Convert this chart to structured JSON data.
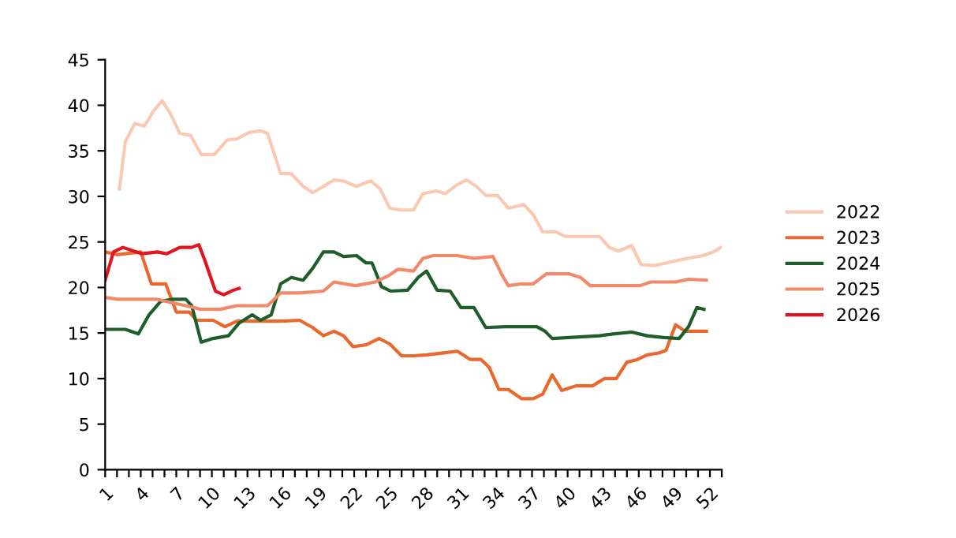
{
  "chart_data": {
    "type": "line",
    "xlim": [
      1,
      53
    ],
    "ylim": [
      0,
      45
    ],
    "yticks": [
      0,
      5,
      10,
      15,
      20,
      25,
      30,
      35,
      40,
      45
    ],
    "xticks": [
      1,
      {
        "value": 2,
        "label": null
      },
      {
        "value": 3,
        "label": null
      },
      4,
      {
        "value": 5,
        "label": null
      },
      {
        "value": 6,
        "label": null
      },
      7,
      {
        "value": 8,
        "label": null
      },
      {
        "value": 9,
        "label": null
      },
      10,
      {
        "value": 11,
        "label": null
      },
      {
        "value": 12,
        "label": null
      },
      13,
      {
        "value": 14,
        "label": null
      },
      {
        "value": 15,
        "label": null
      },
      16,
      {
        "value": 17,
        "label": null
      },
      {
        "value": 18,
        "label": null
      },
      19,
      {
        "value": 20,
        "label": null
      },
      {
        "value": 21,
        "label": null
      },
      22,
      {
        "value": 23,
        "label": null
      },
      {
        "value": 24,
        "label": null
      },
      25,
      {
        "value": 26,
        "label": null
      },
      {
        "value": 27,
        "label": null
      },
      28,
      {
        "value": 29,
        "label": null
      },
      {
        "value": 30,
        "label": null
      },
      31,
      {
        "value": 32,
        "label": null
      },
      {
        "value": 33,
        "label": null
      },
      34,
      {
        "value": 35,
        "label": null
      },
      {
        "value": 36,
        "label": null
      },
      37,
      {
        "value": 38,
        "label": null
      },
      {
        "value": 39,
        "label": null
      },
      40,
      {
        "value": 41,
        "label": null
      },
      {
        "value": 42,
        "label": null
      },
      43,
      {
        "value": 44,
        "label": null
      },
      {
        "value": 45,
        "label": null
      },
      46,
      {
        "value": 47,
        "label": null
      },
      {
        "value": 48,
        "label": null
      },
      49,
      {
        "value": 50,
        "label": null
      },
      {
        "value": 51,
        "label": null
      },
      52,
      {
        "value": 53,
        "label": null
      }
    ],
    "grid": false,
    "legend": "right",
    "marker": "none",
    "line_style": "solid",
    "series": [
      {
        "name": "2022",
        "color": "#f9c9b1",
        "x": [
          2.2,
          2.7,
          3.5,
          4.3,
          5.1,
          5.8,
          6.5,
          7.3,
          8.2,
          9.1,
          10.2,
          11.3,
          12.1,
          13.1,
          14.1,
          14.7,
          15.8,
          16.7,
          17.7,
          18.5,
          19.4,
          20.3,
          21.1,
          22.2,
          23.4,
          24.2,
          25,
          26,
          27,
          27.8,
          28.9,
          29.7,
          30.7,
          31.5,
          32.3,
          33.1,
          34.1,
          35,
          36.3,
          37.1,
          37.9,
          39,
          39.8,
          41.7,
          42.7,
          43.5,
          44.3,
          45.4,
          46.2,
          47.3,
          48.7,
          50.1,
          51.4,
          52.3,
          52.9
        ],
        "values": [
          30.8,
          36,
          38,
          37.7,
          39.4,
          40.5,
          39.1,
          36.9,
          36.7,
          34.6,
          34.6,
          36.2,
          36.3,
          37,
          37.2,
          36.9,
          32.5,
          32.5,
          31.1,
          30.4,
          31.1,
          31.8,
          31.7,
          31.1,
          31.7,
          30.8,
          28.7,
          28.5,
          28.5,
          30.3,
          30.6,
          30.3,
          31.3,
          31.8,
          31.1,
          30.1,
          30.1,
          28.7,
          29.1,
          28,
          26.1,
          26.1,
          25.6,
          25.6,
          25.6,
          24.4,
          24,
          24.6,
          22.5,
          22.4,
          22.8,
          23.2,
          23.5,
          23.9,
          24.4
        ]
      },
      {
        "name": "2023",
        "color": "#e8682e",
        "x": [
          1,
          2,
          4,
          4.9,
          6.1,
          7,
          8.1,
          8.7,
          10.1,
          11.1,
          12.1,
          13.1,
          15.8,
          17.4,
          18.5,
          19.4,
          20.3,
          21.1,
          21.9,
          23,
          24.1,
          25,
          26,
          27,
          28.1,
          29.4,
          30.7,
          31.8,
          32.7,
          33.4,
          34.2,
          35,
          36.1,
          37.1,
          37.9,
          38.7,
          39.5,
          40.7,
          42.1,
          43.1,
          44.1,
          45,
          45.9,
          46.7,
          47.7,
          48.3,
          49.1,
          49.9,
          50.7,
          51.7
        ],
        "values": [
          23.9,
          23.6,
          23.9,
          20.4,
          20.4,
          17.3,
          17.3,
          16.4,
          16.4,
          15.7,
          16.3,
          16.3,
          16.3,
          16.4,
          15.6,
          14.7,
          15.2,
          14.7,
          13.5,
          13.7,
          14.4,
          13.8,
          12.5,
          12.5,
          12.6,
          12.8,
          13,
          12.1,
          12.1,
          11.2,
          8.8,
          8.8,
          7.8,
          7.8,
          8.3,
          10.4,
          8.7,
          9.2,
          9.2,
          10,
          10,
          11.8,
          12.1,
          12.6,
          12.8,
          13.1,
          15.9,
          15.2,
          15.2,
          15.2
        ]
      },
      {
        "name": "2024",
        "color": "#1f5e2a",
        "x": [
          1,
          2.7,
          3.8,
          4.7,
          5.7,
          6.7,
          7.8,
          8.3,
          9.1,
          10.1,
          11.4,
          12.3,
          13.4,
          14.1,
          15,
          15.8,
          16.7,
          17.7,
          18.5,
          19.4,
          20.3,
          21.1,
          22.2,
          23,
          23.5,
          24.3,
          25.1,
          26.5,
          27.4,
          28.1,
          29,
          30.1,
          31,
          32.1,
          33.1,
          34.7,
          37.4,
          38.1,
          38.7,
          40.1,
          42.7,
          43.8,
          45.4,
          46.7,
          48.1,
          49.4,
          50.2,
          50.9,
          51.5
        ],
        "values": [
          15.4,
          15.4,
          14.9,
          17,
          18.5,
          18.7,
          18.7,
          18,
          14,
          14.4,
          14.7,
          16.1,
          17,
          16.4,
          17,
          20.4,
          21.1,
          20.8,
          22.1,
          23.9,
          23.9,
          23.4,
          23.5,
          22.7,
          22.7,
          20.1,
          19.6,
          19.7,
          21.1,
          21.8,
          19.7,
          19.6,
          17.8,
          17.8,
          15.6,
          15.7,
          15.7,
          15.2,
          14.4,
          14.5,
          14.7,
          14.9,
          15.1,
          14.7,
          14.5,
          14.4,
          15.7,
          17.8,
          17.6
        ]
      },
      {
        "name": "2025",
        "color": "#f28a6a",
        "x": [
          1,
          2.1,
          5.4,
          6.7,
          7.8,
          9.1,
          10.7,
          12.1,
          13.1,
          14.7,
          15.8,
          17.4,
          19.4,
          20.3,
          22.1,
          23.8,
          24.9,
          25.7,
          27,
          27.8,
          28.7,
          30.7,
          32.1,
          33.7,
          34.5,
          35,
          36.1,
          37.1,
          38.2,
          40.1,
          41.1,
          41.9,
          44.1,
          46.1,
          47,
          49.1,
          50.2,
          51.7
        ],
        "values": [
          18.9,
          18.7,
          18.7,
          18.3,
          18,
          17.6,
          17.6,
          18,
          18,
          18,
          19.4,
          19.4,
          19.6,
          20.6,
          20.2,
          20.6,
          21.3,
          22,
          21.8,
          23.2,
          23.5,
          23.5,
          23.2,
          23.4,
          21.3,
          20.2,
          20.4,
          20.4,
          21.5,
          21.5,
          21.1,
          20.2,
          20.2,
          20.2,
          20.6,
          20.6,
          20.9,
          20.8
        ]
      },
      {
        "name": "2026",
        "color": "#e0151f",
        "x": [
          1,
          1.7,
          2.5,
          4.1,
          5.4,
          6.2,
          7.3,
          8.3,
          8.9,
          9.4,
          10.3,
          11,
          11.8,
          12.3
        ],
        "values": [
          20.8,
          23.9,
          24.4,
          23.7,
          23.9,
          23.7,
          24.4,
          24.4,
          24.7,
          23,
          19.6,
          19.2,
          19.7,
          19.9
        ]
      }
    ]
  }
}
